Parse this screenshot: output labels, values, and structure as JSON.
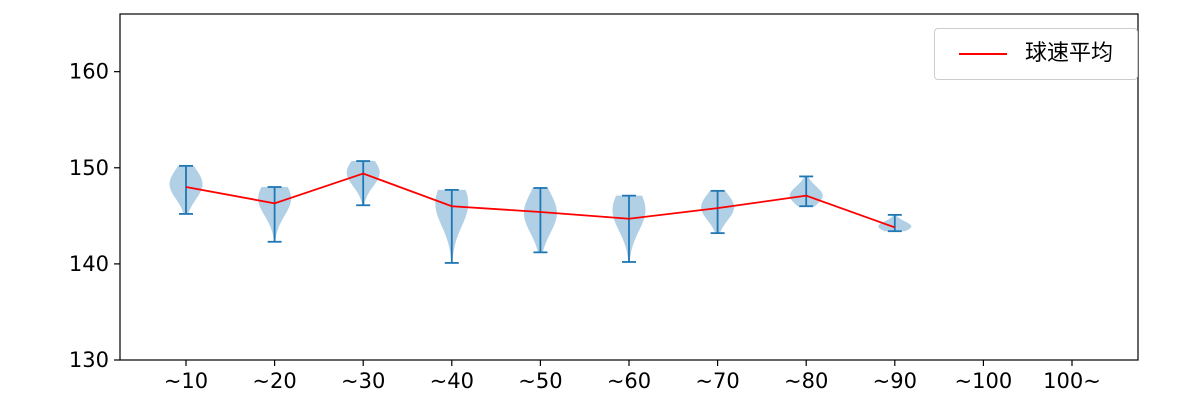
{
  "chart_data": {
    "type": "violin",
    "title": "",
    "xlabel": "",
    "ylabel": "",
    "ylim": [
      130,
      166
    ],
    "yticks": [
      130,
      140,
      150,
      160
    ],
    "grid": false,
    "categories": [
      "~10",
      "~20",
      "~30",
      "~40",
      "~50",
      "~60",
      "~70",
      "~80",
      "~90",
      "~100",
      "100~"
    ],
    "violin_color": "#1f77b4",
    "violin_edge_color": "#1f77b4",
    "violins": [
      {
        "category": "~10",
        "min": 145.2,
        "max": 150.2,
        "mode": 148.3
      },
      {
        "category": "~20",
        "min": 142.3,
        "max": 148.0,
        "mode": 146.8
      },
      {
        "category": "~30",
        "min": 146.1,
        "max": 150.7,
        "mode": 149.5
      },
      {
        "category": "~40",
        "min": 140.1,
        "max": 147.7,
        "mode": 146.3
      },
      {
        "category": "~50",
        "min": 141.2,
        "max": 147.9,
        "mode": 145.3
      },
      {
        "category": "~60",
        "min": 140.2,
        "max": 147.1,
        "mode": 145.6
      },
      {
        "category": "~70",
        "min": 143.2,
        "max": 147.6,
        "mode": 145.9
      },
      {
        "category": "~80",
        "min": 146.0,
        "max": 149.1,
        "mode": 147.1
      },
      {
        "category": "~90",
        "min": 143.4,
        "max": 145.1,
        "mode": 143.9
      }
    ],
    "mean_series": {
      "label": "球速平均",
      "color": "#ff0000",
      "values": [
        148.0,
        146.3,
        149.4,
        146.0,
        145.4,
        144.7,
        145.8,
        147.1,
        143.8,
        null,
        null
      ]
    },
    "legend": {
      "position": "top-right",
      "entries": [
        {
          "label": "球速平均",
          "color": "#ff0000",
          "type": "line"
        }
      ]
    }
  }
}
